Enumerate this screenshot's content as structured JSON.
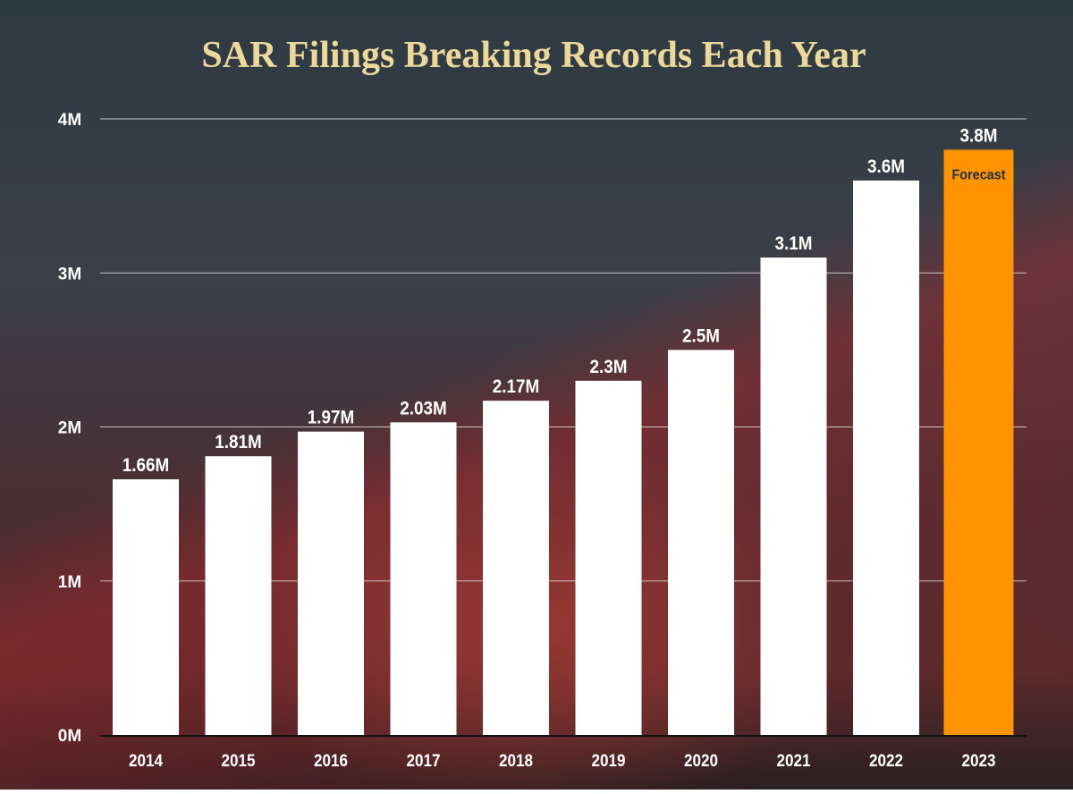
{
  "chart_data": {
    "type": "bar",
    "title": "SAR Filings Breaking Records Each Year",
    "categories": [
      "2014",
      "2015",
      "2016",
      "2017",
      "2018",
      "2019",
      "2020",
      "2021",
      "2022",
      "2023"
    ],
    "values": [
      1.66,
      1.81,
      1.97,
      2.03,
      2.17,
      2.3,
      2.5,
      3.1,
      3.6,
      3.8
    ],
    "data_labels": [
      "1.66M",
      "1.81M",
      "1.97M",
      "2.03M",
      "2.17M",
      "2.3M",
      "2.5M",
      "3.1M",
      "3.6M",
      "3.8M"
    ],
    "unit": "M",
    "ylim": [
      0,
      4
    ],
    "yticks": [
      0,
      1,
      2,
      3,
      4
    ],
    "ytick_labels": [
      "0M",
      "1M",
      "2M",
      "3M",
      "4M"
    ],
    "xlabel": "",
    "ylabel": "",
    "grid": true,
    "annotation": {
      "category": "2023",
      "text": "Forecast"
    },
    "colors": {
      "bar": "#ffffff",
      "forecast_bar": "#ff9400",
      "title": "#ecd89a",
      "annotation": "#233047",
      "text": "#ffffff"
    }
  }
}
